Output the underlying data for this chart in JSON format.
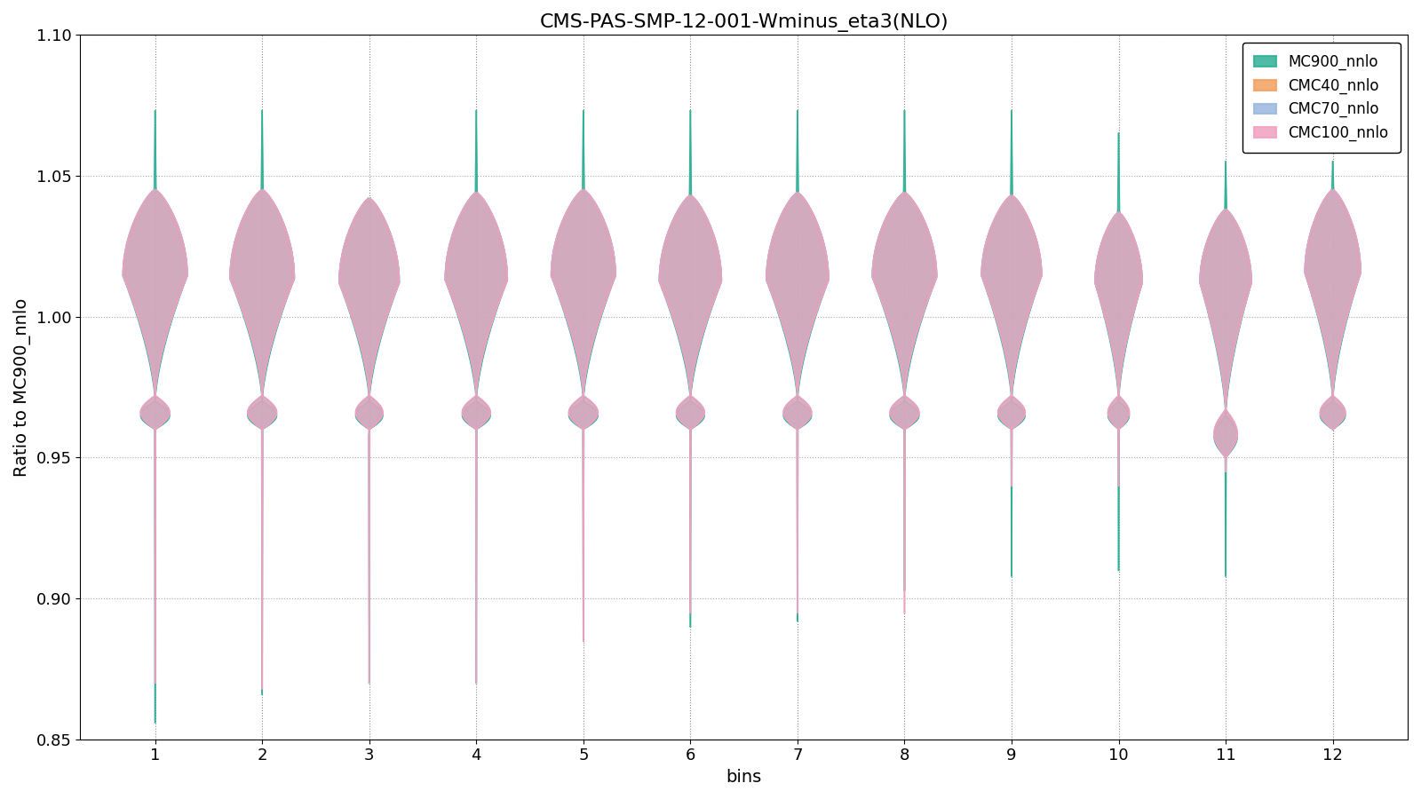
{
  "title": "CMS-PAS-SMP-12-001-Wminus_eta3(NLO)",
  "xlabel": "bins",
  "ylabel": "Ratio to MC900_nnlo",
  "n_bins": 12,
  "ylim": [
    0.85,
    1.1
  ],
  "series": [
    {
      "name": "MC900_nnlo",
      "color": "#2eaf96",
      "alpha": 0.55,
      "lw": 1.2,
      "body_top": [
        1.045,
        1.045,
        1.042,
        1.044,
        1.045,
        1.043,
        1.044,
        1.044,
        1.043,
        1.037,
        1.038,
        1.045
      ],
      "body_bot": [
        0.96,
        0.96,
        0.96,
        0.96,
        0.96,
        0.96,
        0.96,
        0.96,
        0.96,
        0.96,
        0.95,
        0.96
      ],
      "tail_top": [
        1.073,
        1.073,
        1.042,
        1.073,
        1.073,
        1.073,
        1.073,
        1.073,
        1.073,
        1.065,
        1.055,
        1.055
      ],
      "tail_bot": [
        0.856,
        0.866,
        0.87,
        0.87,
        0.885,
        0.89,
        0.892,
        0.903,
        0.908,
        0.91,
        0.908,
        0.96
      ],
      "peak_top": [
        1.045,
        1.045,
        1.042,
        1.044,
        1.045,
        1.043,
        1.044,
        1.044,
        1.043,
        1.037,
        1.038,
        1.045
      ],
      "peak_bot": [
        0.984,
        0.982,
        0.982,
        0.982,
        0.984,
        0.982,
        0.982,
        0.984,
        0.986,
        0.987,
        0.986,
        0.986
      ],
      "waist": [
        0.97,
        0.97,
        0.97,
        0.97,
        0.97,
        0.97,
        0.97,
        0.97,
        0.97,
        0.97,
        0.965,
        0.97
      ],
      "max_width": [
        0.3,
        0.3,
        0.28,
        0.29,
        0.3,
        0.29,
        0.29,
        0.3,
        0.28,
        0.22,
        0.24,
        0.26
      ]
    },
    {
      "name": "CMC40_nnlo",
      "color": "#f4a060",
      "alpha": 0.55,
      "lw": 1.2,
      "body_top": [
        1.045,
        1.045,
        1.042,
        1.044,
        1.045,
        1.043,
        1.044,
        1.044,
        1.043,
        1.037,
        1.038,
        1.045
      ],
      "body_bot": [
        0.96,
        0.96,
        0.96,
        0.96,
        0.96,
        0.96,
        0.96,
        0.96,
        0.96,
        0.96,
        0.95,
        0.96
      ],
      "tail_top": [
        1.045,
        1.045,
        1.042,
        1.044,
        1.045,
        1.043,
        1.044,
        1.044,
        1.043,
        1.037,
        1.038,
        1.045
      ],
      "tail_bot": [
        0.96,
        0.96,
        0.96,
        0.96,
        0.96,
        0.96,
        0.96,
        0.96,
        0.96,
        0.96,
        0.95,
        0.96
      ],
      "peak_top": [
        1.045,
        1.045,
        1.042,
        1.044,
        1.045,
        1.043,
        1.044,
        1.044,
        1.043,
        1.037,
        1.038,
        1.045
      ],
      "peak_bot": [
        0.984,
        0.982,
        0.982,
        0.982,
        0.984,
        0.982,
        0.982,
        0.984,
        0.986,
        0.987,
        0.986,
        0.986
      ],
      "waist": [
        0.972,
        0.972,
        0.972,
        0.972,
        0.972,
        0.972,
        0.972,
        0.972,
        0.972,
        0.972,
        0.967,
        0.972
      ],
      "max_width": [
        0.28,
        0.28,
        0.26,
        0.27,
        0.28,
        0.27,
        0.27,
        0.28,
        0.26,
        0.2,
        0.22,
        0.24
      ]
    },
    {
      "name": "CMC70_nnlo",
      "color": "#9ab8e0",
      "alpha": 0.55,
      "lw": 1.2,
      "body_top": [
        1.045,
        1.045,
        1.042,
        1.044,
        1.045,
        1.043,
        1.044,
        1.044,
        1.043,
        1.037,
        1.038,
        1.045
      ],
      "body_bot": [
        0.96,
        0.96,
        0.96,
        0.96,
        0.96,
        0.96,
        0.96,
        0.96,
        0.96,
        0.96,
        0.95,
        0.96
      ],
      "tail_top": [
        1.045,
        1.045,
        1.042,
        1.044,
        1.045,
        1.043,
        1.044,
        1.044,
        1.043,
        1.037,
        1.038,
        1.045
      ],
      "tail_bot": [
        0.96,
        0.96,
        0.96,
        0.96,
        0.96,
        0.96,
        0.96,
        0.96,
        0.96,
        0.96,
        0.95,
        0.96
      ],
      "peak_top": [
        1.045,
        1.045,
        1.042,
        1.044,
        1.045,
        1.043,
        1.044,
        1.044,
        1.043,
        1.037,
        1.038,
        1.045
      ],
      "peak_bot": [
        0.984,
        0.982,
        0.982,
        0.982,
        0.984,
        0.982,
        0.982,
        0.984,
        0.986,
        0.987,
        0.986,
        0.986
      ],
      "waist": [
        0.972,
        0.972,
        0.972,
        0.972,
        0.972,
        0.972,
        0.972,
        0.972,
        0.972,
        0.972,
        0.967,
        0.972
      ],
      "max_width": [
        0.3,
        0.3,
        0.28,
        0.29,
        0.3,
        0.29,
        0.29,
        0.3,
        0.28,
        0.22,
        0.24,
        0.26
      ]
    },
    {
      "name": "CMC100_nnlo",
      "color": "#f0a0c0",
      "alpha": 0.55,
      "lw": 1.2,
      "body_top": [
        1.045,
        1.045,
        1.042,
        1.044,
        1.045,
        1.043,
        1.044,
        1.044,
        1.043,
        1.037,
        1.038,
        1.045
      ],
      "body_bot": [
        0.96,
        0.96,
        0.96,
        0.96,
        0.96,
        0.96,
        0.96,
        0.96,
        0.96,
        0.96,
        0.95,
        0.96
      ],
      "tail_top": [
        1.045,
        1.045,
        1.042,
        1.044,
        1.045,
        1.043,
        1.044,
        1.044,
        1.043,
        1.037,
        1.038,
        1.045
      ],
      "tail_bot": [
        0.87,
        0.868,
        0.87,
        0.87,
        0.885,
        0.895,
        0.895,
        0.895,
        0.94,
        0.94,
        0.945,
        0.96
      ],
      "peak_top": [
        1.045,
        1.045,
        1.042,
        1.044,
        1.045,
        1.043,
        1.044,
        1.044,
        1.043,
        1.037,
        1.038,
        1.045
      ],
      "peak_bot": [
        0.984,
        0.982,
        0.982,
        0.982,
        0.984,
        0.982,
        0.982,
        0.984,
        0.986,
        0.987,
        0.986,
        0.986
      ],
      "waist": [
        0.972,
        0.972,
        0.972,
        0.972,
        0.972,
        0.972,
        0.972,
        0.972,
        0.972,
        0.972,
        0.967,
        0.972
      ],
      "max_width": [
        0.3,
        0.3,
        0.28,
        0.29,
        0.3,
        0.29,
        0.29,
        0.3,
        0.28,
        0.22,
        0.24,
        0.26
      ]
    }
  ],
  "background_color": "#ffffff",
  "dotted_grid_color": "#aaaaaa"
}
